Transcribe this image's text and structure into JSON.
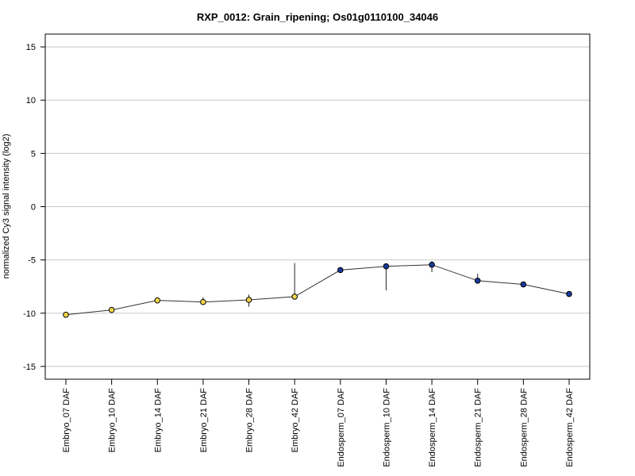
{
  "chart_data": {
    "type": "line",
    "title": "RXP_0012: Grain_ripening; Os01g0110100_34046",
    "xlabel": "",
    "ylabel": "normalized Cy3 signal intensity (log2)",
    "ylim": [
      -16.2,
      16.2
    ],
    "yticks": [
      15,
      10,
      5,
      0,
      -5,
      -10,
      -15
    ],
    "ytick_labels": [
      "15",
      "10",
      "5",
      "0",
      "-5",
      "-10",
      "-15"
    ],
    "grid": "horizontal",
    "categories": [
      "Embryo_07 DAF",
      "Embryo_10 DAF",
      "Embryo_14 DAF",
      "Embryo_21 DAF",
      "Embryo_28 DAF",
      "Embryo_42 DAF",
      "Endosperm_07 DAF",
      "Endosperm_10 DAF",
      "Endosperm_14 DAF",
      "Endosperm_21 DAF",
      "Endosperm_28 DAF",
      "Endosperm_42 DAF"
    ],
    "values": [
      -10.15,
      -9.7,
      -8.8,
      -8.95,
      -8.75,
      -8.45,
      -5.95,
      -5.6,
      -5.45,
      -6.95,
      -7.3,
      -8.2
    ],
    "error_low": [
      -10.15,
      -9.85,
      -8.8,
      -9.2,
      -9.4,
      -8.5,
      -6.0,
      -7.85,
      -6.15,
      -7.05,
      -7.45,
      -8.2
    ],
    "error_high": [
      -10.15,
      -9.55,
      -8.75,
      -8.5,
      -8.25,
      -5.3,
      -5.85,
      -5.5,
      -5.1,
      -6.3,
      -7.2,
      -8.15
    ],
    "point_colors": [
      "#f2d54a",
      "#f2d54a",
      "#f2d54a",
      "#f2d54a",
      "#f2d54a",
      "#f2d54a",
      "#1a3a9c",
      "#1a3a9c",
      "#1a3a9c",
      "#1a3a9c",
      "#1a3a9c",
      "#1a3a9c"
    ],
    "line_color": "#333333",
    "grid_color": "#c8c8c8"
  }
}
